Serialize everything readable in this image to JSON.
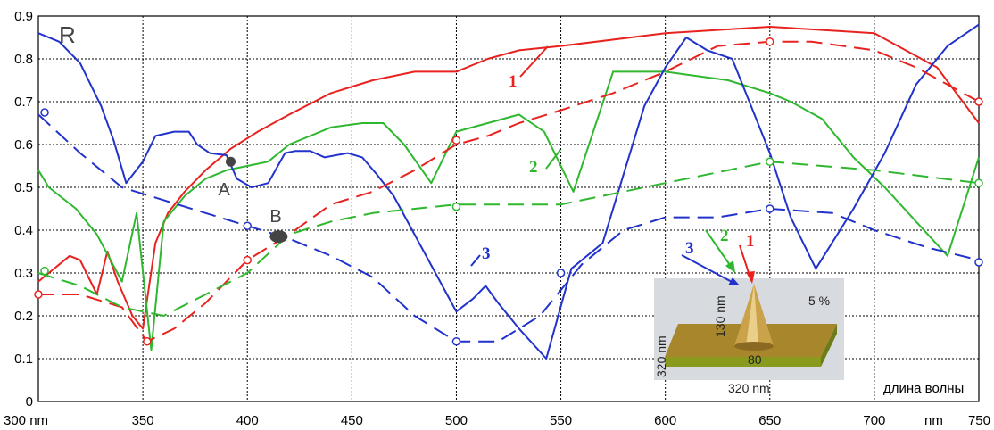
{
  "chart_data": {
    "type": "line",
    "ylabel": "R",
    "xlim": [
      300,
      750
    ],
    "ylim": [
      0,
      0.9
    ],
    "x_ticks": [
      {
        "v": 300,
        "label": "300 nm"
      },
      {
        "v": 350,
        "label": "350"
      },
      {
        "v": 400,
        "label": "400"
      },
      {
        "v": 450,
        "label": "450"
      },
      {
        "v": 500,
        "label": "500"
      },
      {
        "v": 550,
        "label": "550"
      },
      {
        "v": 600,
        "label": "600"
      },
      {
        "v": 650,
        "label": "650"
      },
      {
        "v": 700,
        "label": "700"
      },
      {
        "v": 750,
        "label": "750"
      }
    ],
    "x_unit_label": "nm",
    "y_ticks": [
      "0",
      "0.1",
      "0.2",
      "0.3",
      "0.4",
      "0.5",
      "0.6",
      "0.7",
      "0.8",
      "0.9"
    ],
    "grid": true,
    "colors": {
      "red": "#e8221e",
      "green": "#2fb82f",
      "blue": "#2233cc"
    },
    "series": [
      {
        "id": "red-solid",
        "color": "red",
        "dash": false,
        "x": [
          300,
          305,
          315,
          320,
          328,
          333,
          338,
          345,
          350,
          356,
          362,
          370,
          380,
          392,
          405,
          420,
          440,
          460,
          480,
          500,
          515,
          530,
          550,
          600,
          650,
          700,
          730,
          750
        ],
        "y": [
          0.28,
          0.3,
          0.34,
          0.33,
          0.25,
          0.35,
          0.28,
          0.2,
          0.17,
          0.37,
          0.44,
          0.49,
          0.54,
          0.59,
          0.63,
          0.67,
          0.72,
          0.75,
          0.77,
          0.77,
          0.8,
          0.82,
          0.83,
          0.86,
          0.875,
          0.86,
          0.78,
          0.65
        ]
      },
      {
        "id": "green-solid",
        "color": "green",
        "dash": false,
        "x": [
          300,
          305,
          318,
          328,
          340,
          347,
          354,
          360,
          370,
          380,
          390,
          400,
          410,
          420,
          440,
          455,
          465,
          475,
          488,
          500,
          515,
          530,
          542,
          556,
          575,
          600,
          630,
          650,
          660,
          675,
          690,
          705,
          720,
          735,
          750
        ],
        "y": [
          0.54,
          0.5,
          0.45,
          0.39,
          0.28,
          0.44,
          0.12,
          0.42,
          0.48,
          0.52,
          0.54,
          0.55,
          0.56,
          0.6,
          0.64,
          0.65,
          0.65,
          0.6,
          0.51,
          0.63,
          0.65,
          0.67,
          0.63,
          0.49,
          0.77,
          0.77,
          0.75,
          0.72,
          0.7,
          0.66,
          0.57,
          0.5,
          0.42,
          0.34,
          0.57
        ]
      },
      {
        "id": "blue-solid",
        "color": "blue",
        "dash": false,
        "x": [
          300,
          310,
          320,
          330,
          336,
          342,
          350,
          356,
          365,
          372,
          376,
          382,
          390,
          395,
          402,
          410,
          418,
          423,
          430,
          437,
          448,
          455,
          462,
          470,
          490,
          500,
          508,
          514,
          520,
          530,
          543,
          555,
          570,
          580,
          590,
          600,
          610,
          620,
          632,
          650,
          660,
          672,
          690,
          705,
          720,
          735,
          750
        ],
        "y": [
          0.86,
          0.84,
          0.79,
          0.69,
          0.61,
          0.51,
          0.56,
          0.62,
          0.63,
          0.63,
          0.6,
          0.58,
          0.575,
          0.52,
          0.5,
          0.51,
          0.58,
          0.585,
          0.585,
          0.57,
          0.58,
          0.57,
          0.53,
          0.48,
          0.3,
          0.21,
          0.24,
          0.27,
          0.23,
          0.17,
          0.1,
          0.31,
          0.37,
          0.53,
          0.69,
          0.78,
          0.85,
          0.82,
          0.8,
          0.58,
          0.43,
          0.31,
          0.45,
          0.58,
          0.74,
          0.83,
          0.88
        ]
      },
      {
        "id": "red-dashed",
        "color": "red",
        "dash": true,
        "x": [
          300,
          320,
          340,
          352,
          365,
          380,
          400,
          420,
          440,
          460,
          480,
          500,
          515,
          530,
          550,
          575,
          600,
          625,
          650,
          670,
          700,
          720,
          735,
          750
        ],
        "y": [
          0.25,
          0.25,
          0.22,
          0.14,
          0.17,
          0.23,
          0.33,
          0.39,
          0.46,
          0.49,
          0.54,
          0.6,
          0.62,
          0.65,
          0.68,
          0.72,
          0.77,
          0.83,
          0.84,
          0.84,
          0.82,
          0.78,
          0.74,
          0.7
        ]
      },
      {
        "id": "green-dashed",
        "color": "green",
        "dash": true,
        "x": [
          300,
          320,
          340,
          360,
          380,
          400,
          420,
          440,
          460,
          480,
          500,
          550,
          600,
          650,
          700,
          750
        ],
        "y": [
          0.3,
          0.27,
          0.22,
          0.2,
          0.25,
          0.3,
          0.39,
          0.42,
          0.44,
          0.45,
          0.46,
          0.46,
          0.51,
          0.56,
          0.54,
          0.51
        ]
      },
      {
        "id": "blue-dashed",
        "color": "blue",
        "dash": true,
        "x": [
          300,
          320,
          340,
          360,
          380,
          400,
          420,
          440,
          460,
          480,
          500,
          520,
          540,
          560,
          580,
          600,
          625,
          650,
          680,
          700,
          725,
          750
        ],
        "y": [
          0.67,
          0.58,
          0.5,
          0.47,
          0.44,
          0.41,
          0.38,
          0.34,
          0.29,
          0.2,
          0.14,
          0.14,
          0.2,
          0.32,
          0.4,
          0.43,
          0.43,
          0.45,
          0.44,
          0.4,
          0.36,
          0.33
        ]
      }
    ],
    "markers": [
      {
        "color": "red",
        "x": 300,
        "y": 0.25
      },
      {
        "color": "red",
        "x": 352,
        "y": 0.14
      },
      {
        "color": "red",
        "x": 400,
        "y": 0.33
      },
      {
        "color": "red",
        "x": 500,
        "y": 0.61
      },
      {
        "color": "red",
        "x": 650,
        "y": 0.84
      },
      {
        "color": "red",
        "x": 750,
        "y": 0.7
      },
      {
        "color": "green",
        "x": 303,
        "y": 0.305
      },
      {
        "color": "green",
        "x": 500,
        "y": 0.455
      },
      {
        "color": "green",
        "x": 650,
        "y": 0.56
      },
      {
        "color": "green",
        "x": 750,
        "y": 0.51
      },
      {
        "color": "blue",
        "x": 303,
        "y": 0.675
      },
      {
        "color": "blue",
        "x": 400,
        "y": 0.41
      },
      {
        "color": "blue",
        "x": 500,
        "y": 0.14
      },
      {
        "color": "blue",
        "x": 550,
        "y": 0.3
      },
      {
        "color": "blue",
        "x": 650,
        "y": 0.45
      },
      {
        "color": "blue",
        "x": 750,
        "y": 0.325
      }
    ],
    "points": [
      {
        "label": "A",
        "x": 392,
        "y": 0.56
      },
      {
        "label": "B",
        "x": 415,
        "y": 0.385
      }
    ],
    "curve_labels": [
      {
        "text": "1",
        "color": "red",
        "x": 522,
        "y": 0.79
      },
      {
        "text": "2",
        "color": "green",
        "x": 540,
        "y": 0.53
      },
      {
        "text": "3",
        "color": "blue",
        "x": 315,
        "y": 0.28
      }
    ],
    "inset": {
      "fill_factor": "5 %",
      "height": "130 nm",
      "base_diameter": "80",
      "side_a": "320 nm",
      "side_b": "320 nm",
      "arrow_labels": [
        "1",
        "2",
        "3"
      ]
    },
    "wavelength_caption": "длина волны"
  }
}
